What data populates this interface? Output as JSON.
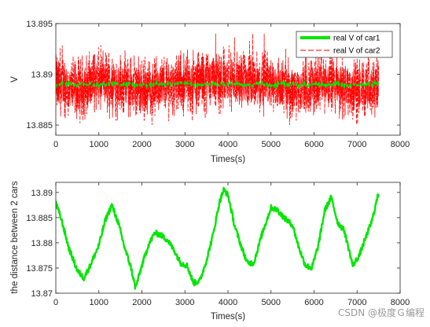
{
  "watermark": "CSDN @极度Ｇ编程",
  "colors": {
    "car1": "#00e600",
    "car2": "#ff0000",
    "distance": "#00e600",
    "axis": "#262626"
  },
  "chart_data": [
    {
      "type": "line",
      "title": "",
      "xlabel": "Times(s)",
      "ylabel": "V",
      "xlim": [
        0,
        8000
      ],
      "ylim": [
        13.884,
        13.895
      ],
      "xticks": [
        "0",
        "1000",
        "2000",
        "3000",
        "4000",
        "5000",
        "6000",
        "7000",
        "8000"
      ],
      "yticks": [
        "13.885",
        "13.89",
        "13.895"
      ],
      "legend_position": "top-right",
      "series": [
        {
          "name": "real V of car1",
          "style": "solid thick",
          "x": [
            0,
            7500
          ],
          "y": [
            13.889,
            13.889
          ]
        },
        {
          "name": "real V of car2",
          "style": "dashed noisy",
          "x": [
            0,
            500,
            1000,
            1500,
            2000,
            2500,
            3000,
            3500,
            4000,
            4500,
            5000,
            5500,
            6000,
            6500,
            7000,
            7500
          ],
          "y": [
            13.889,
            13.8885,
            13.8895,
            13.889,
            13.8885,
            13.889,
            13.889,
            13.8895,
            13.8895,
            13.889,
            13.889,
            13.8885,
            13.889,
            13.889,
            13.8885,
            13.889
          ],
          "spread_min": 13.885,
          "spread_max": 13.894
        }
      ]
    },
    {
      "type": "line",
      "title": "",
      "xlabel": "Times(s)",
      "ylabel": "the distance between 2 cars",
      "xlim": [
        0,
        8000
      ],
      "ylim": [
        13.87,
        13.892
      ],
      "xticks": [
        "0",
        "1000",
        "2000",
        "3000",
        "4000",
        "5000",
        "6000",
        "7000",
        "8000"
      ],
      "yticks": [
        "13.87",
        "13.875",
        "13.88",
        "13.885",
        "13.89"
      ],
      "series": [
        {
          "style": "solid thick",
          "x": [
            0,
            150,
            300,
            500,
            650,
            800,
            1000,
            1150,
            1300,
            1450,
            1600,
            1750,
            1850,
            2000,
            2150,
            2300,
            2450,
            2600,
            2750,
            2900,
            3050,
            3200,
            3350,
            3500,
            3650,
            3800,
            3900,
            4000,
            4150,
            4300,
            4450,
            4600,
            4800,
            5000,
            5150,
            5300,
            5500,
            5650,
            5800,
            5950,
            6100,
            6250,
            6400,
            6550,
            6700,
            6900,
            7050,
            7200,
            7350,
            7500
          ],
          "y": [
            13.888,
            13.884,
            13.879,
            13.8745,
            13.873,
            13.8755,
            13.8795,
            13.8845,
            13.8875,
            13.884,
            13.879,
            13.875,
            13.871,
            13.8755,
            13.8795,
            13.882,
            13.8815,
            13.8805,
            13.8785,
            13.876,
            13.8755,
            13.872,
            13.8725,
            13.8765,
            13.8815,
            13.888,
            13.8905,
            13.8895,
            13.8835,
            13.8795,
            13.876,
            13.876,
            13.882,
            13.887,
            13.8865,
            13.885,
            13.8835,
            13.879,
            13.8755,
            13.875,
            13.8795,
            13.8865,
            13.889,
            13.884,
            13.8825,
            13.8755,
            13.8775,
            13.881,
            13.8845,
            13.89
          ]
        }
      ]
    }
  ]
}
